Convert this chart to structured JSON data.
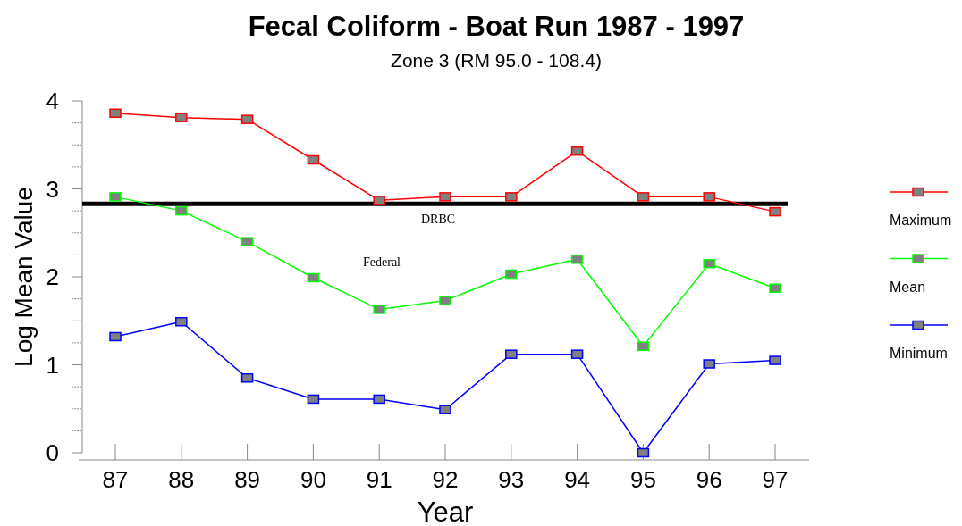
{
  "chart_data": {
    "type": "line",
    "title": "Fecal Coliform -  Boat Run 1987 - 1997",
    "subtitle": "Zone  3 (RM 95.0 - 108.4)",
    "xlabel": "Year",
    "ylabel": "Log Mean Value",
    "categories": [
      "87",
      "88",
      "89",
      "90",
      "91",
      "92",
      "93",
      "94",
      "95",
      "96",
      "97"
    ],
    "series": [
      {
        "name": "Maximum",
        "color": "#ff0000",
        "values": [
          3.86,
          3.81,
          3.79,
          3.33,
          2.87,
          2.91,
          2.91,
          3.43,
          2.91,
          2.91,
          2.74
        ]
      },
      {
        "name": "Mean",
        "color": "#00ff00",
        "values": [
          2.91,
          2.75,
          2.4,
          1.99,
          1.63,
          1.73,
          2.03,
          2.2,
          1.21,
          2.15,
          1.87
        ]
      },
      {
        "name": "Minimum",
        "color": "#0000ff",
        "values": [
          1.32,
          1.49,
          0.85,
          0.61,
          0.61,
          0.49,
          1.12,
          1.12,
          0,
          1.01,
          1.05
        ]
      }
    ],
    "ylim": [
      0,
      4
    ],
    "yticks": [
      0,
      {
        "value": 0.25,
        "label": null
      },
      {
        "value": 0.5,
        "label": null
      },
      {
        "value": 0.75,
        "label": null
      },
      1,
      {
        "value": 1.25,
        "label": null
      },
      {
        "value": 1.5,
        "label": null
      },
      {
        "value": 1.75,
        "label": null
      },
      2,
      {
        "value": 2.25,
        "label": null
      },
      {
        "value": 2.5,
        "label": null
      },
      {
        "value": 2.75,
        "label": null
      },
      3,
      {
        "value": 3.25,
        "label": null
      },
      {
        "value": 3.5,
        "label": null
      },
      {
        "value": 3.75,
        "label": null
      },
      4
    ],
    "ref_lines": [
      {
        "axis": "y",
        "value": 2.83,
        "label": "DRBC",
        "color": "#000000",
        "line_style": "solid"
      },
      {
        "axis": "y",
        "value": 2.35,
        "label": "Federal",
        "color": "#555555",
        "line_style": "dotted"
      }
    ],
    "marker": "square",
    "legend": "right",
    "grid": false
  }
}
